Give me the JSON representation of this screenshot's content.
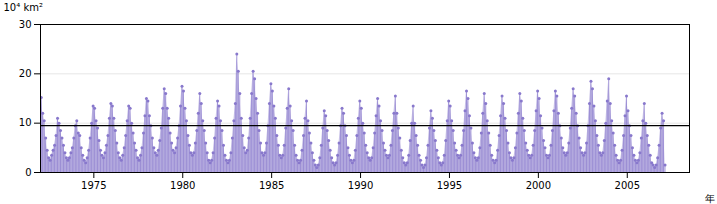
{
  "chart_data": {
    "type": "area",
    "xlabel": "年",
    "ylabel": "10⁴ km²",
    "xlim": [
      1972.0,
      2008.5
    ],
    "ylim": [
      0,
      30
    ],
    "xticks": [
      1975,
      1980,
      1985,
      1990,
      1995,
      2000,
      2005
    ],
    "yticks": [
      0,
      10,
      20,
      30
    ],
    "grid": true,
    "color": "#8878cc",
    "marker": "circle",
    "reference_line": 9.5,
    "x": [
      1972.0416666666667,
      1972.125,
      1972.2083333333333,
      1972.2916666666667,
      1972.375,
      1972.4583333333333,
      1972.5416666666667,
      1972.625,
      1972.7083333333333,
      1972.7916666666667,
      1972.875,
      1972.9583333333333,
      1973.0416666666667,
      1973.125,
      1973.2083333333333,
      1973.2916666666667,
      1973.375,
      1973.4583333333333,
      1973.5416666666667,
      1973.625,
      1973.7083333333333,
      1973.7916666666667,
      1973.875,
      1973.9583333333333,
      1974.0416666666667,
      1974.125,
      1974.2083333333333,
      1974.2916666666667,
      1974.375,
      1974.4583333333333,
      1974.5416666666667,
      1974.625,
      1974.7083333333333,
      1974.7916666666667,
      1974.875,
      1974.9583333333333,
      1975.0416666666667,
      1975.125,
      1975.2083333333333,
      1975.2916666666667,
      1975.375,
      1975.4583333333333,
      1975.5416666666667,
      1975.625,
      1975.7083333333333,
      1975.7916666666667,
      1975.875,
      1975.9583333333333,
      1976.0416666666667,
      1976.125,
      1976.2083333333333,
      1976.2916666666667,
      1976.375,
      1976.4583333333333,
      1976.5416666666667,
      1976.625,
      1976.7083333333333,
      1976.7916666666667,
      1976.875,
      1976.9583333333333,
      1977.0416666666667,
      1977.125,
      1977.2083333333333,
      1977.2916666666667,
      1977.375,
      1977.4583333333333,
      1977.5416666666667,
      1977.625,
      1977.7083333333333,
      1977.7916666666667,
      1977.875,
      1977.9583333333333,
      1978.0416666666667,
      1978.125,
      1978.2083333333333,
      1978.2916666666667,
      1978.375,
      1978.4583333333333,
      1978.5416666666667,
      1978.625,
      1978.7083333333333,
      1978.7916666666667,
      1978.875,
      1978.9583333333333,
      1979.0416666666667,
      1979.125,
      1979.2083333333333,
      1979.2916666666667,
      1979.375,
      1979.4583333333333,
      1979.5416666666667,
      1979.625,
      1979.7083333333333,
      1979.7916666666667,
      1979.875,
      1979.9583333333333,
      1980.0416666666667,
      1980.125,
      1980.2083333333333,
      1980.2916666666667,
      1980.375,
      1980.4583333333333,
      1980.5416666666667,
      1980.625,
      1980.7083333333333,
      1980.7916666666667,
      1980.875,
      1980.9583333333333,
      1981.0416666666667,
      1981.125,
      1981.2083333333333,
      1981.2916666666667,
      1981.375,
      1981.4583333333333,
      1981.5416666666667,
      1981.625,
      1981.7083333333333,
      1981.7916666666667,
      1981.875,
      1981.9583333333333,
      1982.0416666666667,
      1982.125,
      1982.2083333333333,
      1982.2916666666667,
      1982.375,
      1982.4583333333333,
      1982.5416666666667,
      1982.625,
      1982.7083333333333,
      1982.7916666666667,
      1982.875,
      1982.9583333333333,
      1983.0416666666667,
      1983.125,
      1983.2083333333333,
      1983.2916666666667,
      1983.375,
      1983.4583333333333,
      1983.5416666666667,
      1983.625,
      1983.7083333333333,
      1983.7916666666667,
      1983.875,
      1983.9583333333333,
      1984.0416666666667,
      1984.125,
      1984.2083333333333,
      1984.2916666666667,
      1984.375,
      1984.4583333333333,
      1984.5416666666667,
      1984.625,
      1984.7083333333333,
      1984.7916666666667,
      1984.875,
      1984.9583333333333,
      1985.0416666666667,
      1985.125,
      1985.2083333333333,
      1985.2916666666667,
      1985.375,
      1985.4583333333333,
      1985.5416666666667,
      1985.625,
      1985.7083333333333,
      1985.7916666666667,
      1985.875,
      1985.9583333333333,
      1986.0416666666667,
      1986.125,
      1986.2083333333333,
      1986.2916666666667,
      1986.375,
      1986.4583333333333,
      1986.5416666666667,
      1986.625,
      1986.7083333333333,
      1986.7916666666667,
      1986.875,
      1986.9583333333333,
      1987.0416666666667,
      1987.125,
      1987.2083333333333,
      1987.2916666666667,
      1987.375,
      1987.4583333333333,
      1987.5416666666667,
      1987.625,
      1987.7083333333333,
      1987.7916666666667,
      1987.875,
      1987.9583333333333,
      1988.0416666666667,
      1988.125,
      1988.2083333333333,
      1988.2916666666667,
      1988.375,
      1988.4583333333333,
      1988.5416666666667,
      1988.625,
      1988.7083333333333,
      1988.7916666666667,
      1988.875,
      1988.9583333333333,
      1989.0416666666667,
      1989.125,
      1989.2083333333333,
      1989.2916666666667,
      1989.375,
      1989.4583333333333,
      1989.5416666666667,
      1989.625,
      1989.7083333333333,
      1989.7916666666667,
      1989.875,
      1989.9583333333333,
      1990.0416666666667,
      1990.125,
      1990.2083333333333,
      1990.2916666666667,
      1990.375,
      1990.4583333333333,
      1990.5416666666667,
      1990.625,
      1990.7083333333333,
      1990.7916666666667,
      1990.875,
      1990.9583333333333,
      1991.0416666666667,
      1991.125,
      1991.2083333333333,
      1991.2916666666667,
      1991.375,
      1991.4583333333333,
      1991.5416666666667,
      1991.625,
      1991.7083333333333,
      1991.7916666666667,
      1991.875,
      1991.9583333333333,
      1992.0416666666667,
      1992.125,
      1992.2083333333333,
      1992.2916666666667,
      1992.375,
      1992.4583333333333,
      1992.5416666666667,
      1992.625,
      1992.7083333333333,
      1992.7916666666667,
      1992.875,
      1992.9583333333333,
      1993.0416666666667,
      1993.125,
      1993.2083333333333,
      1993.2916666666667,
      1993.375,
      1993.4583333333333,
      1993.5416666666667,
      1993.625,
      1993.7083333333333,
      1993.7916666666667,
      1993.875,
      1993.9583333333333,
      1994.0416666666667,
      1994.125,
      1994.2083333333333,
      1994.2916666666667,
      1994.375,
      1994.4583333333333,
      1994.5416666666667,
      1994.625,
      1994.7083333333333,
      1994.7916666666667,
      1994.875,
      1994.9583333333333,
      1995.0416666666667,
      1995.125,
      1995.2083333333333,
      1995.2916666666667,
      1995.375,
      1995.4583333333333,
      1995.5416666666667,
      1995.625,
      1995.7083333333333,
      1995.7916666666667,
      1995.875,
      1995.9583333333333,
      1996.0416666666667,
      1996.125,
      1996.2083333333333,
      1996.2916666666667,
      1996.375,
      1996.4583333333333,
      1996.5416666666667,
      1996.625,
      1996.7083333333333,
      1996.7916666666667,
      1996.875,
      1996.9583333333333,
      1997.0416666666667,
      1997.125,
      1997.2083333333333,
      1997.2916666666667,
      1997.375,
      1997.4583333333333,
      1997.5416666666667,
      1997.625,
      1997.7083333333333,
      1997.7916666666667,
      1997.875,
      1997.9583333333333,
      1998.0416666666667,
      1998.125,
      1998.2083333333333,
      1998.2916666666667,
      1998.375,
      1998.4583333333333,
      1998.5416666666667,
      1998.625,
      1998.7083333333333,
      1998.7916666666667,
      1998.875,
      1998.9583333333333,
      1999.0416666666667,
      1999.125,
      1999.2083333333333,
      1999.2916666666667,
      1999.375,
      1999.4583333333333,
      1999.5416666666667,
      1999.625,
      1999.7083333333333,
      1999.7916666666667,
      1999.875,
      1999.9583333333333,
      2000.0416666666667,
      2000.125,
      2000.2083333333333,
      2000.2916666666667,
      2000.375,
      2000.4583333333333,
      2000.5416666666667,
      2000.625,
      2000.7083333333333,
      2000.7916666666667,
      2000.875,
      2000.9583333333333,
      2001.0416666666667,
      2001.125,
      2001.2083333333333,
      2001.2916666666667,
      2001.375,
      2001.4583333333333,
      2001.5416666666667,
      2001.625,
      2001.7083333333333,
      2001.7916666666667,
      2001.875,
      2001.9583333333333,
      2002.0416666666667,
      2002.125,
      2002.2083333333333,
      2002.2916666666667,
      2002.375,
      2002.4583333333333,
      2002.5416666666667,
      2002.625,
      2002.7083333333333,
      2002.7916666666667,
      2002.875,
      2002.9583333333333,
      2003.0416666666667,
      2003.125,
      2003.2083333333333,
      2003.2916666666667,
      2003.375,
      2003.4583333333333,
      2003.5416666666667,
      2003.625,
      2003.7083333333333,
      2003.7916666666667,
      2003.875,
      2003.9583333333333,
      2004.0416666666667,
      2004.125,
      2004.2083333333333,
      2004.2916666666667,
      2004.375,
      2004.4583333333333,
      2004.5416666666667,
      2004.625,
      2004.7083333333333,
      2004.7916666666667,
      2004.875,
      2004.9583333333333,
      2005.0416666666667,
      2005.125,
      2005.2083333333333,
      2005.2916666666667,
      2005.375,
      2005.4583333333333,
      2005.5416666666667,
      2005.625,
      2005.7083333333333,
      2005.7916666666667,
      2005.875,
      2005.9583333333333,
      2006.0416666666667,
      2006.125,
      2006.2083333333333,
      2006.2916666666667,
      2006.375,
      2006.4583333333333,
      2006.5416666666667,
      2006.625,
      2006.7083333333333,
      2006.7916666666667,
      2006.875,
      2006.9583333333333,
      2007.0416666666667,
      2007.125
    ],
    "values": [
      15.2,
      12.0,
      10.5,
      7.0,
      4.5,
      3.0,
      2.5,
      3.5,
      4.5,
      5.5,
      7.5,
      11.0,
      10.0,
      8.5,
      7.0,
      5.5,
      4.0,
      3.0,
      2.5,
      3.0,
      4.0,
      5.0,
      7.0,
      9.5,
      10.5,
      8.0,
      7.5,
      5.0,
      3.5,
      2.5,
      2.0,
      3.0,
      4.5,
      7.0,
      10.0,
      13.5,
      13.0,
      10.5,
      9.0,
      6.5,
      4.5,
      3.5,
      3.0,
      4.0,
      5.5,
      7.5,
      11.0,
      14.0,
      13.5,
      11.0,
      8.5,
      6.0,
      4.0,
      3.0,
      2.5,
      3.5,
      5.0,
      7.5,
      10.5,
      13.5,
      13.0,
      10.0,
      8.0,
      6.0,
      4.5,
      3.0,
      2.5,
      3.5,
      5.0,
      8.0,
      11.5,
      15.0,
      14.5,
      11.5,
      9.5,
      7.0,
      5.0,
      4.0,
      3.5,
      4.5,
      6.5,
      9.0,
      13.0,
      17.0,
      16.0,
      13.0,
      11.0,
      8.0,
      6.0,
      4.5,
      4.0,
      5.0,
      7.0,
      9.5,
      13.5,
      17.5,
      16.5,
      13.0,
      10.5,
      7.5,
      5.5,
      4.0,
      3.5,
      4.0,
      6.0,
      8.5,
      12.0,
      16.0,
      14.0,
      10.5,
      8.5,
      6.0,
      4.0,
      2.5,
      2.0,
      2.5,
      4.0,
      7.0,
      11.0,
      14.5,
      13.5,
      10.5,
      8.5,
      5.5,
      3.5,
      2.5,
      2.0,
      2.5,
      4.0,
      7.0,
      10.5,
      14.0,
      24.0,
      20.5,
      16.0,
      11.0,
      7.5,
      5.0,
      4.0,
      4.5,
      7.0,
      11.0,
      16.0,
      20.5,
      19.0,
      15.0,
      12.0,
      8.5,
      6.0,
      4.0,
      3.5,
      4.0,
      6.0,
      9.5,
      14.0,
      18.0,
      16.5,
      13.5,
      11.0,
      7.5,
      5.5,
      3.5,
      3.0,
      3.5,
      5.5,
      9.0,
      13.0,
      17.0,
      13.5,
      10.5,
      8.5,
      5.5,
      3.5,
      2.5,
      2.0,
      2.5,
      4.5,
      7.5,
      11.0,
      14.5,
      10.5,
      8.0,
      6.0,
      4.0,
      2.5,
      1.5,
      1.0,
      1.5,
      3.0,
      5.5,
      9.0,
      12.5,
      11.5,
      8.5,
      6.5,
      4.5,
      3.0,
      2.0,
      1.5,
      2.0,
      3.5,
      6.0,
      9.5,
      13.0,
      12.0,
      9.5,
      7.5,
      5.0,
      3.5,
      2.5,
      2.0,
      2.5,
      4.5,
      7.5,
      11.0,
      14.5,
      13.0,
      10.0,
      8.0,
      5.5,
      4.0,
      3.0,
      2.5,
      3.0,
      5.0,
      8.0,
      11.5,
      15.0,
      13.5,
      10.5,
      8.5,
      6.0,
      4.5,
      3.5,
      3.0,
      3.5,
      5.5,
      8.5,
      12.0,
      15.5,
      12.0,
      9.0,
      7.0,
      4.5,
      3.0,
      2.0,
      1.5,
      2.0,
      3.5,
      6.5,
      10.0,
      13.5,
      10.0,
      7.5,
      5.5,
      3.5,
      2.5,
      1.5,
      1.0,
      1.5,
      3.0,
      5.5,
      9.0,
      12.5,
      11.0,
      8.5,
      6.5,
      4.5,
      3.0,
      2.0,
      1.5,
      2.0,
      3.5,
      6.5,
      10.5,
      14.5,
      13.5,
      10.5,
      8.5,
      6.0,
      4.5,
      3.5,
      3.0,
      3.5,
      5.5,
      8.5,
      12.5,
      16.5,
      15.0,
      11.5,
      9.0,
      6.0,
      4.0,
      3.0,
      2.5,
      3.0,
      5.0,
      8.0,
      12.0,
      16.0,
      14.0,
      10.5,
      8.0,
      5.5,
      3.5,
      2.5,
      2.0,
      2.5,
      4.5,
      7.5,
      11.5,
      15.5,
      14.0,
      11.0,
      8.5,
      6.0,
      4.0,
      3.0,
      2.5,
      3.0,
      5.0,
      8.0,
      12.0,
      16.0,
      14.5,
      11.0,
      8.5,
      6.0,
      4.5,
      3.5,
      3.0,
      3.5,
      5.5,
      8.5,
      12.5,
      16.5,
      15.0,
      11.5,
      9.0,
      6.5,
      5.0,
      3.5,
      3.0,
      3.5,
      5.5,
      8.5,
      12.5,
      16.5,
      15.5,
      12.0,
      9.5,
      7.0,
      5.0,
      4.0,
      3.5,
      4.0,
      6.0,
      9.0,
      13.0,
      17.0,
      15.5,
      12.0,
      9.5,
      7.0,
      5.0,
      4.0,
      3.5,
      4.0,
      6.0,
      9.5,
      14.0,
      18.5,
      17.0,
      13.5,
      10.5,
      7.5,
      5.5,
      4.0,
      3.5,
      4.0,
      6.5,
      10.0,
      14.5,
      19.0,
      14.0,
      10.5,
      8.0,
      5.5,
      3.5,
      2.5,
      2.0,
      2.5,
      4.5,
      7.5,
      11.5,
      15.5,
      12.5,
      9.5,
      7.5,
      5.0,
      3.5,
      2.5,
      2.0,
      2.5,
      4.0,
      7.0,
      10.5,
      14.0,
      10.0,
      7.5,
      5.5,
      3.5,
      2.0,
      1.5,
      1.0,
      1.5,
      3.0,
      5.5,
      9.0,
      12.0,
      10.5,
      1.5
    ]
  }
}
